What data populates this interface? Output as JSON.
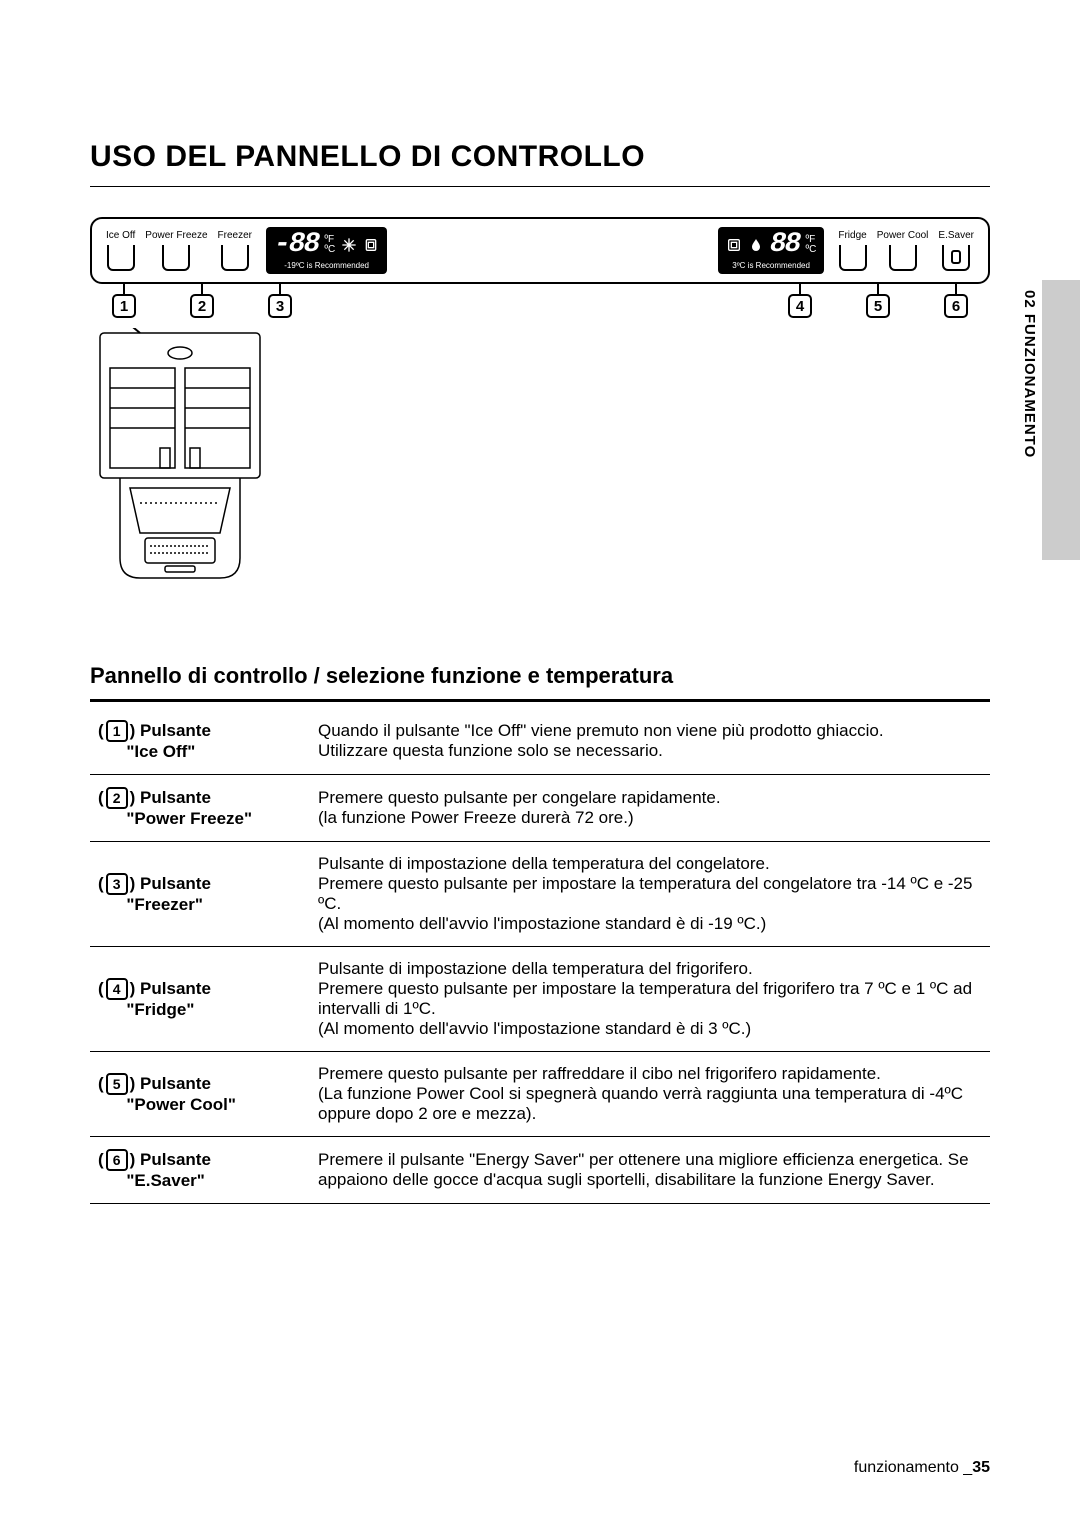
{
  "page": {
    "title": "USO DEL PANNELLO DI CONTROLLO",
    "side_tab_text": "02  FUNZIONAMENTO",
    "subtitle": "Pannello di controllo / selezione funzione e temperatura",
    "footer_label": "funzionamento _",
    "footer_page": "35"
  },
  "panel": {
    "buttons_left": [
      {
        "label": "Ice Off"
      },
      {
        "label": "Power Freeze"
      },
      {
        "label": "Freezer"
      }
    ],
    "buttons_right": [
      {
        "label": "Fridge"
      },
      {
        "label": "Power Cool"
      },
      {
        "label": "E.Saver"
      }
    ],
    "display_left": {
      "temp": "-88",
      "unit_top": "ºF",
      "unit_bot": "ºC",
      "note": "-19ºC is Recommended"
    },
    "display_right": {
      "temp": "88",
      "unit_top": "ºF",
      "unit_bot": "ºC",
      "note": "3ºC is Recommended"
    },
    "callouts_left": [
      "1",
      "2",
      "3"
    ],
    "callouts_right": [
      "4",
      "5",
      "6"
    ]
  },
  "functions": [
    {
      "num": "1",
      "name": "Pulsante",
      "sub": "\"Ice Off\"",
      "desc": "Quando il pulsante \"Ice Off\" viene premuto non viene più prodotto ghiaccio.\nUtilizzare questa funzione solo se necessario."
    },
    {
      "num": "2",
      "name": "Pulsante",
      "sub": "\"Power Freeze\"",
      "desc": "Premere questo pulsante per congelare rapidamente.\n(la funzione Power Freeze durerà 72 ore.)"
    },
    {
      "num": "3",
      "name": "Pulsante",
      "sub": "\"Freezer\"",
      "desc": "Pulsante di impostazione della temperatura del congelatore.\nPremere questo pulsante per impostare la temperatura del congelatore tra -14 ºC e -25 ºC.\n(Al momento dell'avvio l'impostazione standard è di -19 ºC.)"
    },
    {
      "num": "4",
      "name": "Pulsante",
      "sub": "\"Fridge\"",
      "desc": "Pulsante di impostazione della temperatura del frigorifero.\nPremere questo pulsante per impostare la temperatura del frigorifero tra 7 ºC e 1 ºC ad intervalli di 1ºC.\n(Al momento dell'avvio l'impostazione standard è di 3 ºC.)"
    },
    {
      "num": "5",
      "name": "Pulsante",
      "sub": "\"Power Cool\"",
      "desc": "Premere questo pulsante per raffreddare il cibo nel frigorifero rapidamente.\n(La funzione Power Cool si spegnerà quando verrà raggiunta una temperatura di -4ºC oppure dopo 2 ore e mezza)."
    },
    {
      "num": "6",
      "name": "Pulsante",
      "sub": "\"E.Saver\"",
      "desc": "Premere il pulsante \"Energy Saver\" per ottenere una migliore efficienza energetica. Se appaiono delle gocce d'acqua sugli sportelli, disabilitare la funzione Energy Saver."
    }
  ],
  "style": {
    "colors": {
      "text": "#000000",
      "bg": "#ffffff",
      "tab": "#cccccc",
      "display_bg": "#000000",
      "display_fg": "#ffffff"
    },
    "fonts": {
      "body": "Arial",
      "title_size": 30,
      "subtitle_size": 22,
      "table_size": 17
    }
  }
}
